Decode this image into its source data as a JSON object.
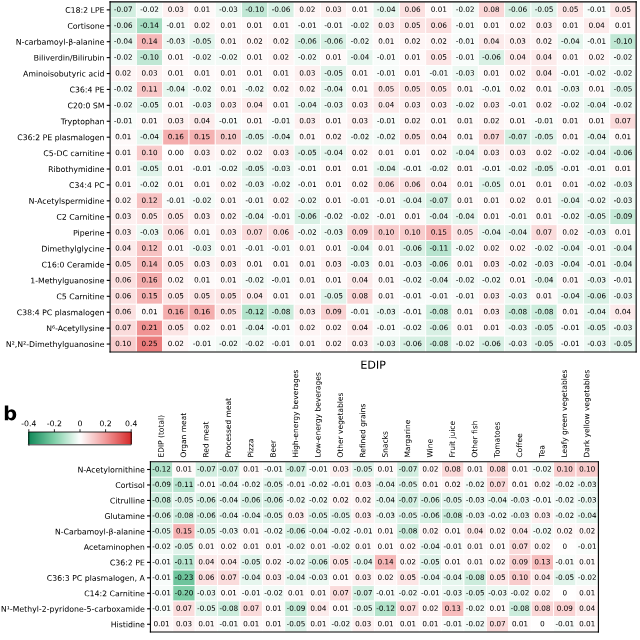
{
  "chart_data": [
    {
      "type": "heatmap",
      "xlabel": "EDIP",
      "categories": [
        null,
        null,
        null,
        null,
        null,
        null,
        null,
        null,
        null,
        null,
        null,
        null,
        null,
        null,
        null,
        null,
        null,
        null,
        null,
        null
      ],
      "y_categories": [
        "C18:2 LPE",
        "Cortisone",
        "N-carbamoyl-β-alanine",
        "Biliverdin/Bilirubin",
        "Aminoisobutyric acid",
        "C36:4 PE",
        "C20:0 SM",
        "Tryptophan",
        "C36:2 PE plasmalogen",
        "C5-DC carnitine",
        "Ribothymidine",
        "C34:4 PC",
        "N-Acetylspermidine",
        "C2 Carnitine",
        "Piperine",
        "Dimethylglycine",
        "C16:0 Ceramide",
        "1-Methylguanosine",
        "C5 Carnitine",
        "C38:4 PC plasmalogen",
        "N⁶-Acetyllysine",
        "N²,N²-Dimethylguanosine"
      ],
      "cells": [
        [
          -0.07,
          -0.02,
          0.03,
          0.01,
          -0.03,
          -0.1,
          -0.06,
          0.02,
          0.03,
          0.01,
          -0.04,
          0.06,
          0.01,
          -0.02,
          0.08,
          -0.06,
          -0.05,
          0.05,
          -0.01,
          0.05
        ],
        [
          -0.06,
          -0.14,
          -0.01,
          0.02,
          0.01,
          0.01,
          0.01,
          -0.01,
          -0.01,
          -0.02,
          0.03,
          0.05,
          0.06,
          -0.01,
          0.01,
          0.02,
          0.03,
          0.01,
          0.04,
          0.01
        ],
        [
          -0.04,
          0.14,
          -0.03,
          -0.05,
          0.01,
          0.02,
          0.02,
          -0.06,
          -0.06,
          -0.02,
          0.01,
          0.02,
          0.02,
          -0.01,
          0.04,
          0.03,
          0.02,
          -0.04,
          -0.01,
          -0.1
        ],
        [
          -0.02,
          -0.1,
          0.01,
          -0.02,
          -0.02,
          0.01,
          0.02,
          -0.02,
          0.01,
          -0.04,
          -0.01,
          0.01,
          0.05,
          -0.01,
          -0.06,
          0.04,
          0.04,
          0.01,
          0.02,
          -0.02
        ],
        [
          0.02,
          0.03,
          0.01,
          0.01,
          0.01,
          0.01,
          0.01,
          0.03,
          -0.05,
          0.01,
          -0.01,
          0.01,
          -0.01,
          -0.03,
          0.01,
          0.02,
          0.04,
          -0.01,
          -0.02,
          -0.02
        ],
        [
          -0.02,
          0.11,
          -0.04,
          -0.02,
          0.01,
          -0.02,
          0.02,
          0.02,
          -0.04,
          0.01,
          0.05,
          0.05,
          0.05,
          0.01,
          -0.01,
          0.02,
          0.01,
          -0.03,
          0.01,
          -0.05
        ],
        [
          -0.02,
          -0.05,
          0.01,
          -0.03,
          0.03,
          0.04,
          0.01,
          -0.04,
          -0.03,
          0.03,
          0.04,
          0.03,
          0.03,
          -0.02,
          0.03,
          -0.01,
          0.02,
          -0.02,
          -0.04,
          -0.02
        ],
        [
          -0.01,
          0.01,
          0.03,
          0.04,
          -0.01,
          0.01,
          -0.01,
          0.03,
          0.01,
          0.03,
          -0.01,
          0.02,
          0.01,
          0.01,
          0.02,
          0.01,
          -0.01,
          0.01,
          0.01,
          0.07
        ],
        [
          0.01,
          -0.04,
          0.16,
          0.15,
          0.1,
          -0.05,
          -0.04,
          0.01,
          0.02,
          -0.02,
          -0.02,
          0.05,
          0.04,
          0.01,
          0.07,
          -0.07,
          -0.05,
          0.01,
          -0.04,
          0.01
        ],
        [
          0.01,
          0.1,
          0.0,
          0.03,
          0.02,
          0.02,
          0.03,
          -0.05,
          -0.04,
          0.02,
          0.01,
          0.01,
          0.02,
          -0.04,
          0.03,
          0.03,
          0.02,
          -0.02,
          -0.04,
          -0.06
        ],
        [
          0.01,
          -0.05,
          0.01,
          -0.01,
          -0.02,
          -0.05,
          -0.03,
          -0.01,
          0.01,
          0.01,
          -0.04,
          -0.01,
          -0.02,
          0.01,
          -0.01,
          -0.02,
          -0.05,
          -0.01,
          -0.01,
          0.01
        ],
        [
          0.01,
          -0.02,
          0.01,
          0.01,
          0.02,
          -0.03,
          -0.02,
          -0.01,
          0.01,
          0.02,
          0.06,
          0.06,
          0.04,
          0.01,
          -0.05,
          0.01,
          0.01,
          0.01,
          -0.02,
          -0.03
        ],
        [
          0.02,
          0.12,
          -0.01,
          -0.02,
          0.01,
          -0.01,
          0.02,
          -0.02,
          0.01,
          -0.01,
          -0.01,
          -0.04,
          -0.07,
          0.01,
          0.01,
          0.02,
          0.01,
          -0.04,
          -0.02,
          -0.03
        ],
        [
          0.03,
          0.05,
          0.05,
          0.03,
          0.02,
          -0.04,
          -0.01,
          -0.06,
          -0.02,
          -0.02,
          -0.01,
          0.01,
          -0.04,
          -0.04,
          0.01,
          -0.01,
          0.01,
          -0.02,
          -0.05,
          -0.09
        ],
        [
          0.03,
          -0.03,
          0.06,
          0.01,
          0.03,
          0.07,
          0.06,
          -0.02,
          -0.03,
          0.09,
          0.1,
          0.1,
          0.15,
          0.05,
          -0.04,
          -0.04,
          0.07,
          0.02,
          -0.03,
          0.01
        ],
        [
          0.04,
          0.12,
          0.01,
          -0.03,
          0.01,
          -0.01,
          -0.01,
          0.01,
          0.01,
          -0.04,
          0.01,
          -0.06,
          -0.11,
          -0.02,
          0.02,
          0.02,
          -0.02,
          -0.04,
          -0.01,
          -0.04
        ],
        [
          0.05,
          0.14,
          0.05,
          0.03,
          0.03,
          0.01,
          0.01,
          0.01,
          0.03,
          -0.03,
          0.01,
          -0.03,
          -0.06,
          0.01,
          0.03,
          -0.02,
          -0.03,
          -0.04,
          -0.01,
          -0.04
        ],
        [
          0.06,
          0.16,
          0.02,
          0.01,
          0.01,
          -0.02,
          -0.01,
          0.01,
          0.01,
          0.04,
          0.01,
          -0.02,
          -0.04,
          -0.02,
          -0.02,
          0.01,
          -0.04,
          0.01,
          -0.03,
          -0.01
        ],
        [
          0.06,
          0.15,
          0.05,
          0.05,
          0.05,
          0.04,
          0.01,
          0.01,
          -0.05,
          0.08,
          0.01,
          -0.01,
          -0.01,
          -0.01,
          0.03,
          -0.03,
          0.01,
          -0.04,
          -0.06,
          -0.03
        ],
        [
          0.06,
          0.01,
          0.16,
          0.16,
          0.05,
          -0.12,
          -0.08,
          0.03,
          0.09,
          -0.01,
          -0.03,
          -0.01,
          -0.08,
          0.01,
          0.03,
          -0.08,
          -0.08,
          0.01,
          -0.04,
          0.04
        ],
        [
          0.07,
          0.21,
          0.05,
          0.02,
          0.01,
          -0.04,
          -0.01,
          0.02,
          0.02,
          0.04,
          -0.01,
          -0.02,
          -0.06,
          0.01,
          0.01,
          -0.03,
          -0.05,
          -0.01,
          -0.05,
          -0.03
        ],
        [
          0.1,
          0.25,
          0.02,
          -0.01,
          -0.02,
          -0.02,
          -0.01,
          0.01,
          0.02,
          0.03,
          -0.03,
          -0.06,
          -0.08,
          -0.02,
          -0.06,
          -0.03,
          -0.05,
          -0.01,
          -0.03,
          -0.05
        ]
      ],
      "cell_labels": [
        [
          "-0.07",
          "-0.02",
          "0.03",
          "0.01",
          "-0.03",
          "-0.10",
          "-0.06",
          "0.02",
          "0.03",
          "0.01",
          "-0.04",
          "0.06",
          "0.01",
          "-0.02",
          "0.08",
          "-0.06",
          "-0.05",
          "0.05",
          "-0.01",
          "0.05"
        ],
        [
          "-0.06",
          "-0.14",
          "-0.01",
          "0.02",
          "0.01",
          "0.01",
          "0.01",
          "-0.01",
          "-0.01",
          "-0.02",
          "0.03",
          "0.05",
          "0.06",
          "-0.01",
          "0.01",
          "0.02",
          "0.03",
          "0.01",
          "0.04",
          "0.01"
        ],
        [
          "-0.04",
          "0.14",
          "-0.03",
          "-0.05",
          "0.01",
          "0.02",
          "0.02",
          "-0.06",
          "-0.06",
          "-0.02",
          "0.01",
          "0.02",
          "0.02",
          "-0.01",
          "0.04",
          "0.03",
          "0.02",
          "-0.04",
          "-0.01",
          "-0.10"
        ],
        [
          "-0.02",
          "-0.10",
          "0.01",
          "-0.02",
          "-0.02",
          "0.01",
          "0.02",
          "-0.02",
          "0.01",
          "-0.04",
          "-0.01",
          "0.01",
          "0.05",
          "-0.01",
          "-0.06",
          "0.04",
          "0.04",
          "0.01",
          "0.02",
          "-0.02"
        ],
        [
          "0.02",
          "0.03",
          "0.01",
          "0.01",
          "0.01",
          "0.01",
          "0.01",
          "0.03",
          "-0.05",
          "0.01",
          "-0.01",
          "0.01",
          "-0.01",
          "-0.03",
          "0.01",
          "0.02",
          "0.04",
          "-0.01",
          "-0.02",
          "-0.02"
        ],
        [
          "-0.02",
          "0.11",
          "-0.04",
          "-0.02",
          "0.01",
          "-0.02",
          "0.02",
          "0.02",
          "-0.04",
          "0.01",
          "0.05",
          "0.05",
          "0.05",
          "0.01",
          "-0.01",
          "0.02",
          "0.01",
          "-0.03",
          "0.01",
          "-0.05"
        ],
        [
          "-0.02",
          "-0.05",
          "0.01",
          "-0.03",
          "0.03",
          "0.04",
          "0.01",
          "-0.04",
          "-0.03",
          "0.03",
          "0.04",
          "0.03",
          "0.03",
          "-0.02",
          "0.03",
          "-0.01",
          "0.02",
          "-0.02",
          "-0.04",
          "-0.02"
        ],
        [
          "-0.01",
          "0.01",
          "0.03",
          "0.04",
          "-0.01",
          "0.01",
          "-0.01",
          "0.03",
          "0.01",
          "0.03",
          "-0.01",
          "0.02",
          "0.01",
          "0.01",
          "0.02",
          "0.01",
          "-0.01",
          "0.01",
          "0.01",
          "0.07"
        ],
        [
          "0.01",
          "-0.04",
          "0.16",
          "0.15",
          "0.10",
          "-0.05",
          "-0.04",
          "0.01",
          "0.02",
          "-0.02",
          "-0.02",
          "0.05",
          "0.04",
          "0.01",
          "0.07",
          "-0.07",
          "-0.05",
          "0.01",
          "-0.04",
          "0.01"
        ],
        [
          "0.01",
          "0.10",
          "0.00",
          "0.03",
          "0.02",
          "0.02",
          "0.03",
          "-0.05",
          "-0.04",
          "0.02",
          "0.01",
          "0.01",
          "0.02",
          "-0.04",
          "0.03",
          "0.03",
          "0.02",
          "-0.02",
          "-0.04",
          "-0.06"
        ],
        [
          "0.01",
          "-0.05",
          "0.01",
          "-0.01",
          "-0.02",
          "-0.05",
          "-0.03",
          "-0.01",
          "0.01",
          "0.01",
          "-0.04",
          "-0.01",
          "-0.02",
          "0.01",
          "-0.01",
          "-0.02",
          "-0.05",
          "-0.01",
          "-0.01",
          "0.01"
        ],
        [
          "0.01",
          "-0.02",
          "0.01",
          "0.01",
          "0.02",
          "-0.03",
          "-0.02",
          "-0.01",
          "0.01",
          "0.02",
          "0.06",
          "0.06",
          "0.04",
          "0.01",
          "-0.05",
          "0.01",
          "0.01",
          "0.01",
          "-0.02",
          "-0.03"
        ],
        [
          "0.02",
          "0.12",
          "-0.01",
          "-0.02",
          "0.01",
          "-0.01",
          "0.02",
          "-0.02",
          "0.01",
          "-0.01",
          "-0.01",
          "-0.04",
          "-0.07",
          "0.01",
          "0.01",
          "0.02",
          "0.01",
          "-0.04",
          "-0.02",
          "-0.03"
        ],
        [
          "0.03",
          "0.05",
          "0.05",
          "0.03",
          "0.02",
          "-0.04",
          "-0.01",
          "-0.06",
          "-0.02",
          "-0.02",
          "-0.01",
          "0.01",
          "-0.04",
          "-0.04",
          "0.01",
          "-0.01",
          "0.01",
          "-0.02",
          "-0.05",
          "-0.09"
        ],
        [
          "0.03",
          "-0.03",
          "0.06",
          "0.01",
          "0.03",
          "0.07",
          "0.06",
          "-0.02",
          "-0.03",
          "0.09",
          "0.10",
          "0.10",
          "0.15",
          "0.05",
          "-0.04",
          "-0.04",
          "0.07",
          "0.02",
          "-0.03",
          "0.01"
        ],
        [
          "0.04",
          "0.12",
          "0.01",
          "-0.03",
          "0.01",
          "-0.01",
          "-0.01",
          "0.01",
          "0.01",
          "-0.04",
          "0.01",
          "-0.06",
          "-0.11",
          "-0.02",
          "0.02",
          "0.02",
          "-0.02",
          "-0.04",
          "-0.01",
          "-0.04"
        ],
        [
          "0.05",
          "0.14",
          "0.05",
          "0.03",
          "0.03",
          "0.01",
          "0.01",
          "0.01",
          "0.03",
          "-0.03",
          "0.01",
          "-0.03",
          "-0.06",
          "0.01",
          "0.03",
          "-0.02",
          "-0.03",
          "-0.04",
          "-0.01",
          "-0.04"
        ],
        [
          "0.06",
          "0.16",
          "0.02",
          "0.01",
          "0.01",
          "-0.02",
          "-0.01",
          "0.01",
          "0.01",
          "0.04",
          "0.01",
          "-0.02",
          "-0.04",
          "-0.02",
          "-0.02",
          "0.01",
          "-0.04",
          "0.01",
          "-0.03",
          "-0.01"
        ],
        [
          "0.06",
          "0.15",
          "0.05",
          "0.05",
          "0.05",
          "0.04",
          "0.01",
          "0.01",
          "-0.05",
          "0.08",
          "0.01",
          "-0.01",
          "-0.01",
          "-0.01",
          "0.03",
          "-0.03",
          "0.01",
          "-0.04",
          "-0.06",
          "-0.03"
        ],
        [
          "0.06",
          "0.01",
          "0.16",
          "0.16",
          "0.05",
          "-0.12",
          "-0.08",
          "0.03",
          "0.09",
          "-0.01",
          "-0.03",
          "-0.01",
          "-0.08",
          "0.01",
          "0.03",
          "-0.08",
          "-0.08",
          "0.01",
          "-0.04",
          "0.04"
        ],
        [
          "0.07",
          "0.21",
          "0.05",
          "0.02",
          "0.01",
          "-0.04",
          "-0.01",
          "0.02",
          "0.02",
          "0.04",
          "-0.01",
          "-0.02",
          "-0.06",
          "0.01",
          "0.01",
          "-0.03",
          "-0.05",
          "-0.01",
          "-0.05",
          "-0.03"
        ],
        [
          "0.10",
          "0.25",
          "0.02",
          "-0.01",
          "-0.02",
          "-0.02",
          "-0.01",
          "0.01",
          "0.02",
          "0.03",
          "-0.03",
          "-0.06",
          "-0.08",
          "-0.02",
          "-0.06",
          "-0.03",
          "-0.05",
          "-0.01",
          "-0.03",
          "-0.05"
        ]
      ]
    },
    {
      "type": "heatmap",
      "title": "b",
      "categories": [
        "EDIP (total)",
        "Organ meat",
        "Red meat",
        "Processed meat",
        "Pizza",
        "Beer",
        "High-energy beverages",
        "Low-energy beverages",
        "Other vegetables",
        "Refined grains",
        "Snacks",
        "Margarine",
        "Wine",
        "Fruit juice",
        "Other fish",
        "Tomatoes",
        "Coffee",
        "Tea",
        "Leafy green vegetables",
        "Dark yellow vegetables"
      ],
      "y_categories": [
        "N-Acetylornithine",
        "Cortisol",
        "Citrulline",
        "Glutamine",
        "N-Carbamoyl-β-alanine",
        "Acetaminophen",
        "C36:2 PE",
        "C36:3 PC plasmalogen, A",
        "C14:2 Carnitine",
        "N¹-Methyl-2-pyridone-5-carboxamide",
        "Histidine"
      ],
      "cells": [
        [
          -0.12,
          0.01,
          -0.07,
          -0.07,
          0.01,
          -0.01,
          -0.07,
          -0.01,
          0.03,
          -0.05,
          0.01,
          -0.07,
          0.02,
          0.08,
          0.01,
          0.08,
          0.01,
          -0.02,
          0.1,
          0.1
        ],
        [
          -0.09,
          -0.11,
          -0.01,
          -0.04,
          -0.02,
          -0.05,
          -0.01,
          -0.02,
          -0.01,
          0.03,
          -0.04,
          -0.05,
          0.01,
          0.02,
          -0.02,
          0.07,
          0.01,
          0.02,
          -0.02,
          -0.03
        ],
        [
          -0.08,
          -0.05,
          -0.06,
          -0.04,
          -0.06,
          -0.06,
          -0.02,
          -0.02,
          0.02,
          0.02,
          -0.04,
          -0.07,
          -0.06,
          -0.05,
          -0.03,
          -0.04,
          -0.03,
          -0.01,
          -0.02,
          -0.03
        ],
        [
          -0.06,
          -0.08,
          -0.06,
          -0.04,
          -0.04,
          -0.05,
          0.03,
          -0.05,
          -0.05,
          0.03,
          -0.03,
          -0.05,
          -0.06,
          -0.08,
          -0.03,
          -0.02,
          -0.03,
          0.03,
          -0.02,
          -0.04
        ],
        [
          -0.05,
          0.15,
          -0.05,
          -0.03,
          0.01,
          -0.02,
          -0.06,
          -0.04,
          -0.02,
          -0.01,
          0.01,
          -0.08,
          0.02,
          0.01,
          0.04,
          0.02,
          0.04,
          -0.02,
          0.02,
          0.02
        ],
        [
          -0.02,
          -0.05,
          0.01,
          0.02,
          0.01,
          0.01,
          -0.02,
          0.01,
          -0.02,
          0.01,
          0.01,
          0.02,
          -0.04,
          -0.01,
          0.01,
          0.01,
          0.07,
          0.02,
          0,
          -0.01
        ],
        [
          -0.01,
          -0.11,
          0.04,
          0.04,
          -0.05,
          0.02,
          -0.02,
          -0.06,
          0.05,
          -0.04,
          0.14,
          0.02,
          -0.05,
          0.01,
          0.01,
          0.02,
          0.09,
          0.13,
          -0.01,
          0.01
        ],
        [
          -0.01,
          -0.23,
          0.06,
          0.07,
          -0.04,
          0.03,
          -0.04,
          -0.03,
          0.01,
          0.03,
          0.02,
          0.05,
          -0.04,
          -0.04,
          -0.08,
          0.05,
          0.1,
          0.04,
          -0.05,
          -0.02
        ],
        [
          -0.01,
          -0.2,
          -0.03,
          0.01,
          -0.01,
          -0.02,
          0.01,
          0.01,
          0.07,
          -0.07,
          -0.01,
          -0.02,
          -0.01,
          -0.03,
          -0.05,
          -0.03,
          -0.02,
          0.02,
          0,
          0.01
        ],
        [
          -0.01,
          0.07,
          -0.05,
          -0.08,
          0.07,
          0.01,
          -0.09,
          0.04,
          0.01,
          -0.05,
          -0.12,
          0.07,
          0.02,
          0.13,
          -0.02,
          0.01,
          -0.08,
          0.08,
          0.09,
          0.04
        ],
        [
          0.01,
          0.03,
          0.01,
          -0.01,
          0.01,
          0.01,
          -0.05,
          0.01,
          -0.02,
          0.03,
          0.01,
          0.01,
          0.01,
          -0.01,
          -0.02,
          0.07,
          0.01,
          0,
          -0.01,
          0.01
        ]
      ],
      "cell_labels": [
        [
          "-0.12",
          "0.01",
          "-0.07",
          "-0.07",
          "0.01",
          "-0.01",
          "-0.07",
          "-0.01",
          "0.03",
          "-0.05",
          "0.01",
          "-0.07",
          "0.02",
          "0.08",
          "0.01",
          "0.08",
          "0.01",
          "-0.02",
          "0.10",
          "0.10"
        ],
        [
          "-0.09",
          "-0.11",
          "-0.01",
          "-0.04",
          "-0.02",
          "-0.05",
          "-0.01",
          "-0.02",
          "-0.01",
          "0.03",
          "-0.04",
          "-0.05",
          "0.01",
          "0.02",
          "-0.02",
          "0.07",
          "0.01",
          "0.02",
          "-0.02",
          "-0.03"
        ],
        [
          "-0.08",
          "-0.05",
          "-0.06",
          "-0.04",
          "-0.06",
          "-0.06",
          "-0.02",
          "-0.02",
          "0.02",
          "0.02",
          "-0.04",
          "-0.07",
          "-0.06",
          "-0.05",
          "-0.03",
          "-0.04",
          "-0.03",
          "-0.01",
          "-0.02",
          "-0.03"
        ],
        [
          "-0.06",
          "-0.08",
          "-0.06",
          "-0.04",
          "-0.04",
          "-0.05",
          "0.03",
          "-0.05",
          "-0.05",
          "0.03",
          "-0.03",
          "-0.05",
          "-0.06",
          "-0.08",
          "-0.03",
          "-0.02",
          "-0.03",
          "0.03",
          "-0.02",
          "-0.04"
        ],
        [
          "-0.05",
          "0.15",
          "-0.05",
          "-0.03",
          "0.01",
          "-0.02",
          "-0.06",
          "-0.04",
          "-0.02",
          "-0.01",
          "0.01",
          "-0.08",
          "0.02",
          "0.01",
          "0.04",
          "0.02",
          "0.04",
          "-0.02",
          "0.02",
          "0.02"
        ],
        [
          "-0.02",
          "-0.05",
          "0.01",
          "0.02",
          "0.01",
          "0.01",
          "-0.02",
          "0.01",
          "-0.02",
          "0.01",
          "0.01",
          "0.02",
          "-0.04",
          "-0.01",
          "0.01",
          "0.01",
          "0.07",
          "0.02",
          "0",
          "-0.01"
        ],
        [
          "-0.01",
          "-0.11",
          "0.04",
          "0.04",
          "-0.05",
          "0.02",
          "-0.02",
          "-0.06",
          "0.05",
          "-0.04",
          "0.14",
          "0.02",
          "-0.05",
          "0.01",
          "0.01",
          "0.02",
          "0.09",
          "0.13",
          "-0.01",
          "0.01"
        ],
        [
          "-0.01",
          "-0.23",
          "0.06",
          "0.07",
          "-0.04",
          "0.03",
          "-0.04",
          "-0.03",
          "0.01",
          "0.03",
          "0.02",
          "0.05",
          "-0.04",
          "-0.04",
          "-0.08",
          "0.05",
          "0.10",
          "0.04",
          "-0.05",
          "-0.02"
        ],
        [
          "-0.01",
          "-0.20",
          "-0.03",
          "0.01",
          "-0.01",
          "-0.02",
          "0.01",
          "0.01",
          "0.07",
          "-0.07",
          "-0.01",
          "-0.02",
          "-0.01",
          "-0.03",
          "-0.05",
          "-0.03",
          "-0.02",
          "0.02",
          "0",
          "0.01"
        ],
        [
          "-0.01",
          "0.07",
          "-0.05",
          "-0.08",
          "0.07",
          "0.01",
          "-0.09",
          "0.04",
          "0.01",
          "-0.05",
          "-0.12",
          "0.07",
          "0.02",
          "0.13",
          "-0.02",
          "0.01",
          "-0.08",
          "0.08",
          "0.09",
          "0.04"
        ],
        [
          "0.01",
          "0.03",
          "0.01",
          "-0.01",
          "0.01",
          "0.01",
          "-0.05",
          "0.01",
          "-0.02",
          "0.03",
          "0.01",
          "0.01",
          "0.01",
          "-0.01",
          "-0.02",
          "0.07",
          "0.01",
          "0",
          "-0.01",
          "0.01"
        ]
      ],
      "clim": [
        -0.4,
        0.4
      ],
      "cticks": [
        -0.4,
        -0.2,
        0,
        0.2,
        0.4
      ]
    }
  ]
}
